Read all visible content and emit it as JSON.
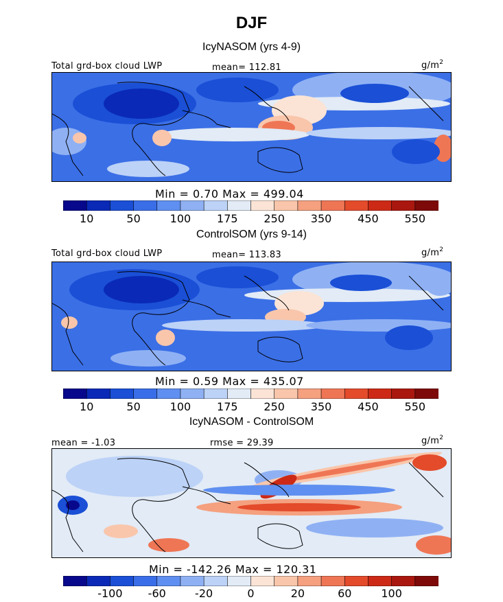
{
  "figure": {
    "title": "DJF",
    "unit_base": "g/m",
    "unit_exp": "2"
  },
  "panels": [
    {
      "title": "IcyNASOM (yrs 4-9)",
      "label": "Total grd-box cloud LWP",
      "stat_text": "mean= 112.81",
      "minmax": "Min =    0.70  Max =  499.04"
    },
    {
      "title": "ControlSOM (yrs 9-14)",
      "label": "Total grd-box cloud LWP",
      "stat_text": "mean= 113.83",
      "minmax": "Min =    0.59  Max =  435.07"
    },
    {
      "title": "IcyNASOM - ControlSOM",
      "stat_left": "mean =   -1.03",
      "stat_text": "rmse =   29.39",
      "minmax": "Min =  -142.26  Max =  120.31"
    }
  ],
  "colorbar_abs": {
    "colors": [
      "#08088c",
      "#0a29b6",
      "#1a4fd6",
      "#3a6ee8",
      "#5f8ff0",
      "#8fb1f4",
      "#bcd2f7",
      "#e2ebf6",
      "#fbe4d6",
      "#f9c6ab",
      "#f5a07f",
      "#ef7655",
      "#e34b2b",
      "#cc2a16",
      "#a9170f",
      "#7d0a08"
    ],
    "ticks": [
      "10",
      "50",
      "100",
      "175",
      "250",
      "350",
      "450",
      "550"
    ]
  },
  "colorbar_diff": {
    "colors": [
      "#08088c",
      "#0a29b6",
      "#1a4fd6",
      "#3a6ee8",
      "#5f8ff0",
      "#8fb1f4",
      "#bcd2f7",
      "#e2ebf6",
      "#fbe4d6",
      "#f9c6ab",
      "#f5a07f",
      "#ef7655",
      "#e34b2b",
      "#cc2a16",
      "#a9170f",
      "#7d0a08"
    ],
    "ticks": [
      "-100",
      "-60",
      "-20",
      "0",
      "20",
      "60",
      "100"
    ]
  }
}
